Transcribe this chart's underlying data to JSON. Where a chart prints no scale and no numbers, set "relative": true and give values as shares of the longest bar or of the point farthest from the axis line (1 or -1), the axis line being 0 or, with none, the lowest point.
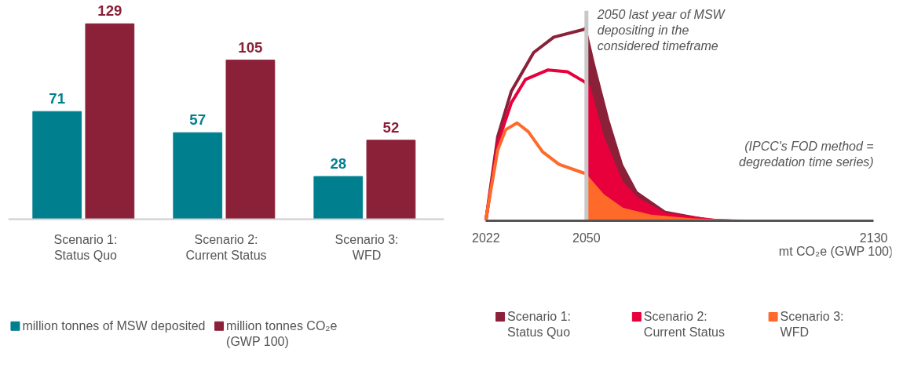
{
  "chart_data": [
    {
      "type": "bar",
      "categories": [
        "Scenario 1:\nStatus Quo",
        "Scenario 2:\nCurrent Status",
        "Scenario 3:\nWFD"
      ],
      "data_labels": true,
      "legend": "bottom",
      "grid": false,
      "series": [
        {
          "name": "million tonnes of MSW deposited",
          "color": "#00808f",
          "values": [
            71,
            57,
            28
          ]
        },
        {
          "name": "million tonnes CO₂e\n(GWP 100)",
          "color": "#8b2139",
          "values": [
            129,
            105,
            52
          ]
        }
      ]
    },
    {
      "type": "line",
      "relative": true,
      "xlim": [
        2022,
        2130
      ],
      "xticks": [
        2022,
        2050,
        2130
      ],
      "xlabel": "mt CO₂e (GWP 100)",
      "legend": "bottom",
      "grid": false,
      "ref_lines": [
        {
          "axis": "x",
          "value": 2050,
          "label": "2050 last year of MSW depositing in the considered timeframe",
          "color": "#c8c8c8"
        }
      ],
      "annotations": [
        "(IPCC's FOD method = degredation time series)"
      ],
      "series": [
        {
          "name": "Scenario 1:\nStatus Quo",
          "color": "#8b2139",
          "type": "line",
          "x": [
            2022,
            2025.3,
            2029.1,
            2035.3,
            2040.9,
            2049.3,
            2050
          ],
          "values": [
            0,
            0.435,
            0.67,
            0.87,
            0.95,
            0.99,
            1.0
          ]
        },
        {
          "color": "#8b2139",
          "type": "area",
          "x": [
            2050,
            2052.4,
            2056.4,
            2060.2,
            2064.2,
            2072,
            2083.6,
            2095,
            2130
          ],
          "values": [
            1.0,
            0.81,
            0.52,
            0.29,
            0.15,
            0.05,
            0.01,
            0,
            0
          ]
        },
        {
          "name": "Scenario 2:\nCurrent Status",
          "color": "#e8003d",
          "type": "line",
          "x": [
            2022,
            2025.3,
            2029.1,
            2033,
            2039.3,
            2044.7,
            2049.3,
            2050
          ],
          "values": [
            0,
            0.4,
            0.61,
            0.73,
            0.78,
            0.77,
            0.72,
            0.71
          ]
        },
        {
          "color": "#e8003d",
          "type": "area",
          "x": [
            2050,
            2051,
            2054.9,
            2060.2,
            2064.2,
            2072,
            2087,
            2130
          ],
          "values": [
            0.71,
            0.7,
            0.435,
            0.2,
            0.12,
            0.04,
            0.005,
            0
          ]
        },
        {
          "name": "Scenario 3:\nWFD",
          "color": "#ff6a2b",
          "type": "line",
          "x": [
            2022,
            2022.4,
            2025.3,
            2027.5,
            2030.7,
            2033.8,
            2037.8,
            2042.4,
            2049.3,
            2050
          ],
          "values": [
            0,
            0.05,
            0.365,
            0.47,
            0.505,
            0.46,
            0.355,
            0.29,
            0.245,
            0.24
          ]
        },
        {
          "color": "#ff6a2b",
          "type": "area",
          "x": [
            2050,
            2054.9,
            2060.2,
            2068,
            2079.6,
            2100,
            2130
          ],
          "values": [
            0.24,
            0.135,
            0.065,
            0.03,
            0.01,
            0,
            0
          ]
        }
      ]
    }
  ]
}
